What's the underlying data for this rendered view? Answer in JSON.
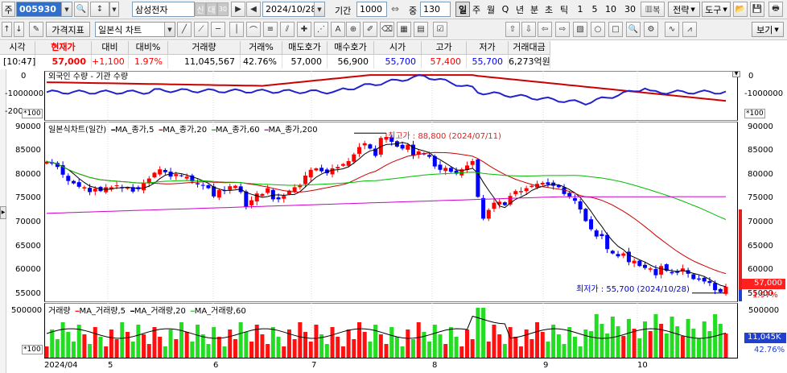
{
  "toolbar1": {
    "ju_label": "주",
    "code": "005930",
    "name": "삼성전자",
    "badge_shin": "신",
    "badge_dae": "대",
    "badge_30": "30",
    "date": "2024/10/28",
    "period_label": "기간",
    "period_value": "1000",
    "zoom_label": "중",
    "zoom_value": "130",
    "timeframes": [
      "일",
      "주",
      "월",
      "Q",
      "년",
      "분",
      "초",
      "틱",
      "1",
      "5",
      "10",
      "30"
    ],
    "active_timeframe": "일",
    "multi_label": "복",
    "strategy_label": "전략",
    "tools_label": "도구"
  },
  "toolbar2": {
    "indicator_label": "가격지표",
    "chart_type": "일본식 차트",
    "view_label": "보기"
  },
  "quote": {
    "headers": [
      "시각",
      "현재가",
      "대비",
      "대비%",
      "거래량",
      "거래%",
      "매도호가",
      "매수호가",
      "시가",
      "고가",
      "저가",
      "거래대금"
    ],
    "values": [
      "[10:47]",
      "57,000",
      "+1,100",
      "1.97%",
      "11,045,567",
      "42.76%",
      "57,000",
      "56,900",
      "55,700",
      "57,400",
      "55,700",
      "6,273억원"
    ]
  },
  "flow_panel": {
    "legend": "외국인 수량 - 기관 수량",
    "axis": [
      "0",
      "-1000000",
      "-200"
    ],
    "axis_right": [
      "0",
      "-1000000"
    ],
    "unit": "*100"
  },
  "price_panel": {
    "legend_main": "일본식차트(일간)",
    "ma_labels": [
      "MA_종가,5",
      "MA_종가,20",
      "MA_종가,60",
      "MA_종가,200"
    ],
    "high_label": "최고가 : 88,800 (2024/07/11)",
    "low_label": "최저가 : 55,700 (2024/10/28)",
    "axis": [
      "90000",
      "85000",
      "80000",
      "75000",
      "70000",
      "65000",
      "60000",
      "55000"
    ],
    "current_price_tag": "57,000",
    "current_pct_tag": "1.97%"
  },
  "volume_panel": {
    "legend_main": "거래량",
    "ma_labels": [
      "MA_거래량,5",
      "MA_거래량,20",
      "MA_거래량,60"
    ],
    "axis": [
      "500000"
    ],
    "unit": "*100",
    "current_volume_tag": "11,045K",
    "current_pct_tag": "42.76%"
  },
  "x_axis": {
    "labels": [
      "2024/04",
      "5",
      "6",
      "7",
      "8",
      "9",
      "10"
    ]
  },
  "colors": {
    "up": "#ff0000",
    "down": "#0000ff",
    "ma5": "#000000",
    "ma20": "#cc0000",
    "ma60": "#00bb00",
    "ma200": "#cc00cc",
    "foreign": "#cc0000",
    "institution": "#2222cc",
    "vol_up": "#ff1010",
    "vol_down": "#22dd22"
  },
  "chart_data": {
    "type": "candlestick",
    "title": "일본식차트(일간)",
    "y_range": [
      54000,
      91000
    ],
    "close_series": [
      82900,
      82500,
      81800,
      80200,
      78900,
      78400,
      77700,
      77600,
      76600,
      77300,
      76800,
      77600,
      77600,
      78000,
      77400,
      77500,
      76700,
      77200,
      78400,
      79400,
      80600,
      81300,
      80700,
      79800,
      80300,
      79900,
      79800,
      78800,
      78200,
      77900,
      77400,
      75700,
      77000,
      76800,
      77800,
      77900,
      76600,
      73500,
      74900,
      76300,
      76200,
      77400,
      75100,
      75100,
      75800,
      76900,
      77600,
      78000,
      80000,
      81200,
      81500,
      80900,
      80500,
      81500,
      81800,
      82400,
      83000,
      84400,
      85900,
      86700,
      85600,
      84100,
      87800,
      88000,
      87000,
      86000,
      85600,
      86400,
      84100,
      85000,
      84400,
      83900,
      81900,
      81200,
      81600,
      80800,
      80400,
      81300,
      82100,
      83000,
      75600,
      71100,
      72900,
      74400,
      74600,
      73900,
      75800,
      76800,
      76800,
      77400,
      77900,
      78300,
      78500,
      78200,
      77900,
      77600,
      76200,
      75700,
      74800,
      73000,
      70600,
      68900,
      67400,
      67500,
      64800,
      63900,
      63300,
      63900,
      62100,
      62400,
      61300,
      60900,
      60800,
      59400,
      61300,
      60300,
      59800,
      59900,
      60800,
      59700,
      58600,
      58500,
      58100,
      57800,
      56300,
      55900,
      57000
    ],
    "high": 88800,
    "low": 55700,
    "ma_labels": [
      "MA_종가,5",
      "MA_종가,20",
      "MA_종가,60",
      "MA_종가,200"
    ]
  }
}
